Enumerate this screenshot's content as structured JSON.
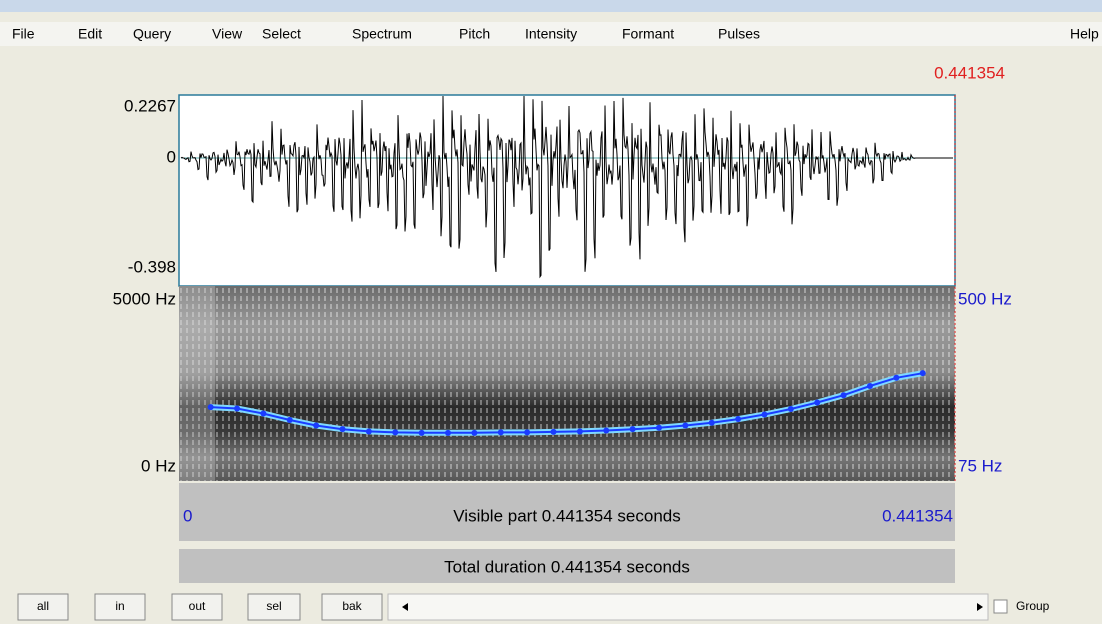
{
  "menu": [
    "File",
    "Edit",
    "Query",
    "View",
    "Select",
    "Spectrum",
    "Pitch",
    "Intensity",
    "Formant",
    "Pulses",
    "Help"
  ],
  "cursor_time": "0.441354",
  "waveform": {
    "top": "0.2267",
    "zero": "0",
    "bottom": "-0.398"
  },
  "spectrogram": {
    "top": "5000 Hz",
    "bottom": "0 Hz"
  },
  "pitch": {
    "top": {
      "value": 500,
      "label": "500 Hz"
    },
    "bottom": {
      "value": 75,
      "label": "75 Hz"
    },
    "color": "#1a3cff",
    "x": [
      0.018,
      0.033,
      0.048,
      0.063,
      0.078,
      0.093,
      0.108,
      0.123,
      0.138,
      0.153,
      0.168,
      0.183,
      0.198,
      0.213,
      0.228,
      0.243,
      0.258,
      0.273,
      0.288,
      0.303,
      0.318,
      0.333,
      0.348,
      0.363,
      0.378,
      0.393,
      0.408,
      0.423
    ],
    "values": [
      236,
      233,
      222,
      208,
      196,
      188,
      183,
      181,
      180,
      180,
      180,
      181,
      181,
      182,
      183,
      185,
      188,
      191,
      196,
      202,
      210,
      220,
      232,
      246,
      262,
      282,
      300,
      310
    ]
  },
  "time_axis": {
    "start": 0,
    "end": 0.441354
  },
  "visible_part": "Visible part 0.441354 seconds",
  "total_duration": "Total duration 0.441354 seconds",
  "buttons": [
    "all",
    "in",
    "out",
    "sel",
    "bak"
  ],
  "group_checkbox": "Group"
}
